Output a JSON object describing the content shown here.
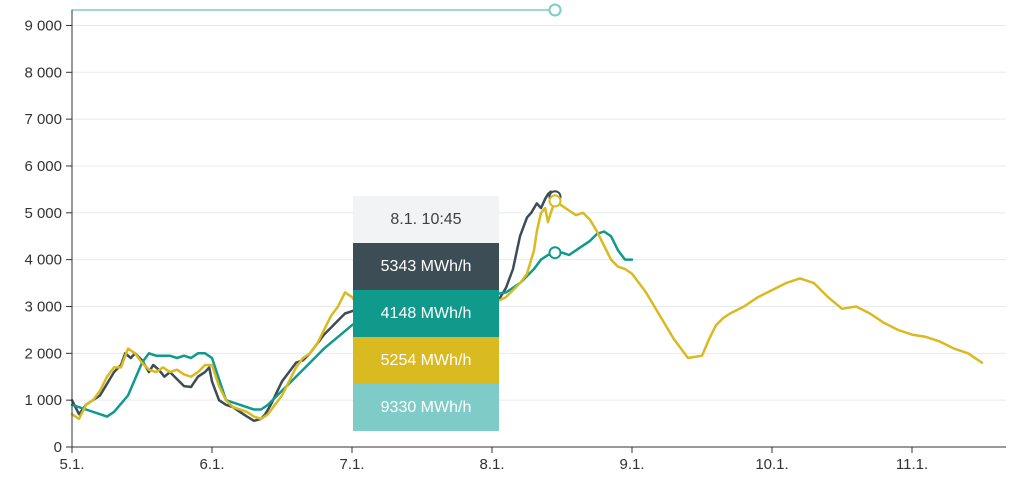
{
  "colors": {
    "actual": "#3d4d56",
    "forecast_a": "#0f9a8c",
    "forecast_b": "#d9ba21",
    "capacity": "#7fcbc7",
    "axis": "#333333",
    "grid": "#e8ebed"
  },
  "tooltip": {
    "date": "8.1. 10:45",
    "rows": [
      {
        "text": "5343 MWh/h",
        "color": "#3d4d56"
      },
      {
        "text": "4148 MWh/h",
        "color": "#0f9a8c"
      },
      {
        "text": "5254 MWh/h",
        "color": "#d9ba21"
      },
      {
        "text": "9330 MWh/h",
        "color": "#7fcbc7"
      }
    ]
  },
  "chart_data": {
    "type": "line",
    "x_unit": "days (0 = 5.1.)",
    "xlim": [
      0,
      6.7
    ],
    "ylim": [
      0,
      9330
    ],
    "grid": true,
    "x_ticks": [
      {
        "x": 0,
        "label": "5.1."
      },
      {
        "x": 1,
        "label": "6.1."
      },
      {
        "x": 2,
        "label": "7.1."
      },
      {
        "x": 3,
        "label": "8.1."
      },
      {
        "x": 4,
        "label": "9.1."
      },
      {
        "x": 5,
        "label": "10.1."
      },
      {
        "x": 6,
        "label": "11.1."
      }
    ],
    "y_ticks": [
      {
        "y": 0,
        "label": "0"
      },
      {
        "y": 1000,
        "label": "1 000"
      },
      {
        "y": 2000,
        "label": "2 000"
      },
      {
        "y": 3000,
        "label": "3 000"
      },
      {
        "y": 4000,
        "label": "4 000"
      },
      {
        "y": 5000,
        "label": "5 000"
      },
      {
        "y": 6000,
        "label": "6 000"
      },
      {
        "y": 7000,
        "label": "7 000"
      },
      {
        "y": 8000,
        "label": "8 000"
      },
      {
        "y": 9000,
        "label": "9 000"
      }
    ],
    "hover_x": 3.45,
    "series": [
      {
        "key": "capacity",
        "x": [
          0,
          3.45
        ],
        "y": [
          9330,
          9330
        ],
        "marker": 9330
      },
      {
        "key": "actual",
        "x": [
          0,
          0.05,
          0.1,
          0.2,
          0.25,
          0.3,
          0.35,
          0.38,
          0.42,
          0.45,
          0.5,
          0.55,
          0.58,
          0.62,
          0.66,
          0.7,
          0.75,
          0.8,
          0.85,
          0.9,
          0.95,
          0.98,
          1.0,
          1.05,
          1.1,
          1.15,
          1.2,
          1.25,
          1.3,
          1.35,
          1.38,
          1.42,
          1.46,
          1.5,
          1.55,
          1.6,
          1.65,
          1.7,
          1.75,
          1.8,
          1.85,
          1.9,
          1.95,
          2.0,
          2.05,
          2.1,
          2.15,
          2.2,
          2.3,
          2.4,
          2.5,
          2.6,
          2.7,
          2.8,
          2.9,
          3.0,
          3.05,
          3.1,
          3.15,
          3.2,
          3.25,
          3.28,
          3.3,
          3.32,
          3.35,
          3.38,
          3.4,
          3.42,
          3.45
        ],
        "y": [
          1000,
          700,
          900,
          1100,
          1350,
          1600,
          1750,
          2000,
          1900,
          2000,
          1850,
          1600,
          1750,
          1650,
          1500,
          1600,
          1450,
          1300,
          1280,
          1500,
          1600,
          1700,
          1400,
          1000,
          900,
          850,
          750,
          650,
          560,
          600,
          700,
          900,
          1150,
          1400,
          1600,
          1800,
          1850,
          2000,
          2200,
          2400,
          2550,
          2700,
          2850,
          2900,
          2950,
          2900,
          3000,
          3050,
          3150,
          3050,
          3100,
          3120,
          3150,
          3180,
          3000,
          3050,
          3150,
          3400,
          3800,
          4500,
          4900,
          5000,
          5100,
          5200,
          5100,
          5300,
          5400,
          5450,
          5343
        ],
        "marker": 5343
      },
      {
        "key": "forecast_a",
        "x": [
          0,
          0.1,
          0.2,
          0.25,
          0.3,
          0.4,
          0.5,
          0.55,
          0.6,
          0.65,
          0.7,
          0.75,
          0.8,
          0.85,
          0.9,
          0.95,
          1.0,
          1.1,
          1.2,
          1.25,
          1.3,
          1.35,
          1.4,
          1.5,
          1.6,
          1.7,
          1.8,
          1.9,
          2.0,
          2.1,
          2.2,
          2.3,
          2.4,
          2.5,
          2.6,
          2.7,
          2.8,
          2.9,
          3.0,
          3.1,
          3.2,
          3.3,
          3.35,
          3.4,
          3.45,
          3.5,
          3.55,
          3.6,
          3.65,
          3.7,
          3.75,
          3.8,
          3.85,
          3.9,
          3.95,
          4.0
        ],
        "y": [
          900,
          800,
          700,
          650,
          750,
          1100,
          1800,
          2000,
          1950,
          1950,
          1950,
          1900,
          1950,
          1900,
          2000,
          2000,
          1900,
          1000,
          900,
          850,
          800,
          800,
          900,
          1200,
          1500,
          1800,
          2100,
          2350,
          2600,
          2800,
          3000,
          3100,
          3150,
          3200,
          3200,
          3250,
          3300,
          3300,
          3250,
          3300,
          3500,
          3800,
          4000,
          4100,
          4148,
          4150,
          4100,
          4200,
          4300,
          4400,
          4550,
          4600,
          4500,
          4200,
          4000,
          4000
        ],
        "marker": 4148
      },
      {
        "key": "forecast_b",
        "x": [
          0,
          0.05,
          0.1,
          0.15,
          0.2,
          0.25,
          0.3,
          0.35,
          0.4,
          0.45,
          0.5,
          0.55,
          0.6,
          0.65,
          0.7,
          0.75,
          0.8,
          0.85,
          0.9,
          0.95,
          1.0,
          1.05,
          1.1,
          1.15,
          1.2,
          1.25,
          1.3,
          1.35,
          1.4,
          1.45,
          1.5,
          1.55,
          1.6,
          1.65,
          1.7,
          1.75,
          1.8,
          1.85,
          1.9,
          1.95,
          2.0,
          2.05,
          2.1,
          2.2,
          2.3,
          2.4,
          2.5,
          2.6,
          2.7,
          2.8,
          2.9,
          3.0,
          3.1,
          3.2,
          3.25,
          3.3,
          3.32,
          3.35,
          3.38,
          3.4,
          3.42,
          3.45,
          3.5,
          3.55,
          3.6,
          3.65,
          3.7,
          3.75,
          3.8,
          3.85,
          3.9,
          3.95,
          4.0,
          4.1,
          4.2,
          4.3,
          4.4,
          4.5,
          4.55,
          4.6,
          4.65,
          4.7,
          4.8,
          4.9,
          5.0,
          5.1,
          5.2,
          5.3,
          5.4,
          5.5,
          5.6,
          5.7,
          5.8,
          5.9,
          6.0,
          6.1,
          6.2,
          6.3,
          6.4,
          6.5
        ],
        "y": [
          700,
          600,
          900,
          1000,
          1200,
          1500,
          1700,
          1700,
          2100,
          2000,
          1800,
          1650,
          1600,
          1700,
          1600,
          1650,
          1550,
          1500,
          1600,
          1750,
          1750,
          1300,
          1000,
          850,
          800,
          750,
          650,
          600,
          700,
          900,
          1100,
          1400,
          1700,
          1900,
          2000,
          2200,
          2500,
          2800,
          3000,
          3300,
          3200,
          3000,
          3100,
          3150,
          3200,
          3100,
          3150,
          3200,
          3100,
          3150,
          3100,
          3050,
          3200,
          3500,
          3700,
          4200,
          4600,
          5000,
          5100,
          4800,
          5000,
          5254,
          5150,
          5050,
          4950,
          5000,
          4850,
          4600,
          4300,
          4000,
          3850,
          3800,
          3700,
          3300,
          2800,
          2300,
          1900,
          1950,
          2300,
          2600,
          2750,
          2850,
          3000,
          3200,
          3350,
          3500,
          3600,
          3500,
          3200,
          2950,
          3000,
          2850,
          2650,
          2500,
          2400,
          2350,
          2250,
          2100,
          2000,
          1800
        ],
        "marker": 5254
      }
    ]
  }
}
